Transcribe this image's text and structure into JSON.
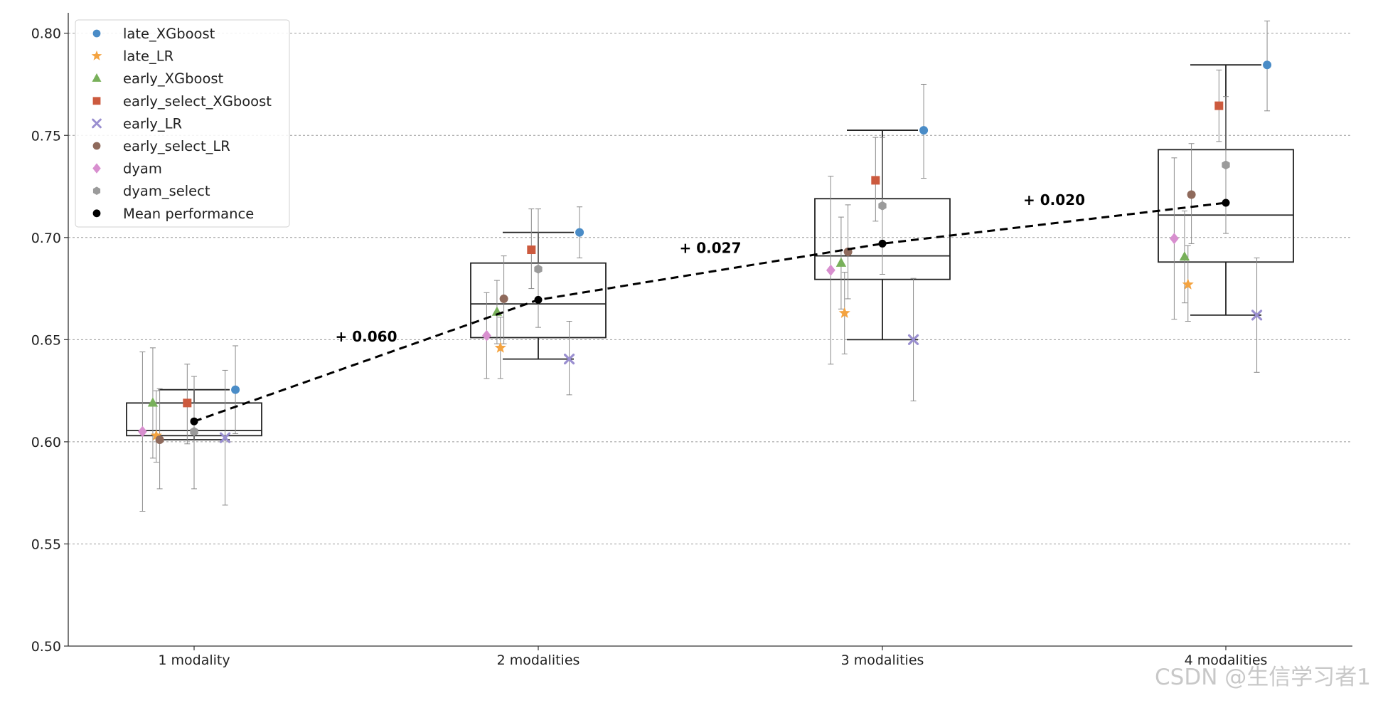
{
  "watermark": "CSDN @生信学习者1",
  "colors": {
    "late_XGboost": "#4a8cc7",
    "late_LR": "#f4a340",
    "early_XGboost": "#78b05a",
    "early_select_XGboost": "#cc5a3e",
    "early_LR": "#9a8fd0",
    "early_select_LR": "#8f6a5c",
    "dyam": "#d88fcf",
    "dyam_select": "#9b9b9b",
    "mean": "#000000"
  },
  "chart_data": {
    "type": "scatter",
    "categories": [
      "1 modality",
      "2 modalities",
      "3 modalities",
      "4 modalities"
    ],
    "ylim": [
      0.5,
      0.81
    ],
    "yticks": [
      "0.50",
      "0.55",
      "0.60",
      "0.65",
      "0.70",
      "0.75",
      "0.80"
    ],
    "grid": "horizontal dashed",
    "legend_position": "top-left",
    "series": [
      {
        "name": "late_XGboost",
        "marker": "circle",
        "color": "#4a8cc7",
        "points": [
          {
            "c": 0,
            "off": 0.12,
            "y": 0.6255,
            "lo": 0.604,
            "hi": 0.647
          },
          {
            "c": 1,
            "off": 0.12,
            "y": 0.7025,
            "lo": 0.69,
            "hi": 0.715
          },
          {
            "c": 2,
            "off": 0.12,
            "y": 0.7525,
            "lo": 0.729,
            "hi": 0.775
          },
          {
            "c": 3,
            "off": 0.12,
            "y": 0.7845,
            "lo": 0.762,
            "hi": 0.806
          }
        ]
      },
      {
        "name": "late_LR",
        "marker": "star",
        "color": "#f4a340",
        "points": [
          {
            "c": 0,
            "off": -0.11,
            "y": 0.603,
            "lo": 0.59,
            "hi": 0.625
          },
          {
            "c": 1,
            "off": -0.11,
            "y": 0.646,
            "lo": 0.631,
            "hi": 0.661
          },
          {
            "c": 2,
            "off": -0.11,
            "y": 0.663,
            "lo": 0.643,
            "hi": 0.683
          },
          {
            "c": 3,
            "off": -0.11,
            "y": 0.677,
            "lo": 0.659,
            "hi": 0.696
          }
        ]
      },
      {
        "name": "early_XGboost",
        "marker": "triangle",
        "color": "#78b05a",
        "points": [
          {
            "c": 0,
            "off": -0.12,
            "y": 0.619,
            "lo": 0.592,
            "hi": 0.646
          },
          {
            "c": 1,
            "off": -0.12,
            "y": 0.6635,
            "lo": 0.648,
            "hi": 0.679
          },
          {
            "c": 2,
            "off": -0.12,
            "y": 0.6875,
            "lo": 0.665,
            "hi": 0.71
          },
          {
            "c": 3,
            "off": -0.12,
            "y": 0.6905,
            "lo": 0.668,
            "hi": 0.713
          }
        ]
      },
      {
        "name": "early_select_XGboost",
        "marker": "square",
        "color": "#cc5a3e",
        "points": [
          {
            "c": 0,
            "off": -0.02,
            "y": 0.619,
            "lo": 0.599,
            "hi": 0.638
          },
          {
            "c": 1,
            "off": -0.02,
            "y": 0.694,
            "lo": 0.675,
            "hi": 0.714
          },
          {
            "c": 2,
            "off": -0.02,
            "y": 0.728,
            "lo": 0.708,
            "hi": 0.749
          },
          {
            "c": 3,
            "off": -0.02,
            "y": 0.7645,
            "lo": 0.747,
            "hi": 0.782
          }
        ]
      },
      {
        "name": "early_LR",
        "marker": "x",
        "color": "#9a8fd0",
        "points": [
          {
            "c": 0,
            "off": 0.09,
            "y": 0.602,
            "lo": 0.569,
            "hi": 0.635
          },
          {
            "c": 1,
            "off": 0.09,
            "y": 0.6405,
            "lo": 0.623,
            "hi": 0.659
          },
          {
            "c": 2,
            "off": 0.09,
            "y": 0.65,
            "lo": 0.62,
            "hi": 0.68
          },
          {
            "c": 3,
            "off": 0.09,
            "y": 0.662,
            "lo": 0.634,
            "hi": 0.69
          }
        ]
      },
      {
        "name": "early_select_LR",
        "marker": "circle",
        "color": "#8f6a5c",
        "points": [
          {
            "c": 0,
            "off": -0.1,
            "y": 0.601,
            "lo": 0.577,
            "hi": 0.626
          },
          {
            "c": 1,
            "off": -0.1,
            "y": 0.67,
            "lo": 0.648,
            "hi": 0.691
          },
          {
            "c": 2,
            "off": -0.1,
            "y": 0.693,
            "lo": 0.67,
            "hi": 0.716
          },
          {
            "c": 3,
            "off": -0.1,
            "y": 0.721,
            "lo": 0.697,
            "hi": 0.746
          }
        ]
      },
      {
        "name": "dyam",
        "marker": "diamond",
        "color": "#d88fcf",
        "points": [
          {
            "c": 0,
            "off": -0.15,
            "y": 0.605,
            "lo": 0.566,
            "hi": 0.644
          },
          {
            "c": 1,
            "off": -0.15,
            "y": 0.652,
            "lo": 0.631,
            "hi": 0.673
          },
          {
            "c": 2,
            "off": -0.15,
            "y": 0.684,
            "lo": 0.638,
            "hi": 0.73
          },
          {
            "c": 3,
            "off": -0.15,
            "y": 0.6995,
            "lo": 0.66,
            "hi": 0.739
          }
        ]
      },
      {
        "name": "dyam_select",
        "marker": "hexagon",
        "color": "#9b9b9b",
        "points": [
          {
            "c": 0,
            "off": 0.0,
            "y": 0.605,
            "lo": 0.577,
            "hi": 0.632
          },
          {
            "c": 1,
            "off": 0.0,
            "y": 0.6845,
            "lo": 0.656,
            "hi": 0.714
          },
          {
            "c": 2,
            "off": 0.0,
            "y": 0.7155,
            "lo": 0.682,
            "hi": 0.749
          },
          {
            "c": 3,
            "off": 0.0,
            "y": 0.7355,
            "lo": 0.702,
            "hi": 0.769
          }
        ]
      },
      {
        "name": "Mean performance",
        "marker": "circle",
        "color": "#000000",
        "points": [
          {
            "c": 0,
            "off": 0.0,
            "y": 0.61
          },
          {
            "c": 1,
            "off": 0.0,
            "y": 0.6695
          },
          {
            "c": 2,
            "off": 0.0,
            "y": 0.697
          },
          {
            "c": 3,
            "off": 0.0,
            "y": 0.717
          }
        ]
      }
    ],
    "boxes": [
      {
        "c": 0,
        "whisker_low": 0.601,
        "q1": 0.603,
        "median": 0.6055,
        "q3": 0.619,
        "whisker_high": 0.6255
      },
      {
        "c": 1,
        "whisker_low": 0.6405,
        "q1": 0.651,
        "median": 0.6675,
        "q3": 0.6875,
        "whisker_high": 0.7025
      },
      {
        "c": 2,
        "whisker_low": 0.65,
        "q1": 0.6795,
        "median": 0.691,
        "q3": 0.719,
        "whisker_high": 0.7525
      },
      {
        "c": 3,
        "whisker_low": 0.662,
        "q1": 0.688,
        "median": 0.711,
        "q3": 0.743,
        "whisker_high": 0.7845
      }
    ],
    "trend": {
      "style": "dashed",
      "y": [
        0.61,
        0.6695,
        0.697,
        0.717
      ]
    },
    "annotations": [
      {
        "text": "+ 0.060",
        "between": [
          0,
          1
        ],
        "y": 0.649
      },
      {
        "text": "+ 0.027",
        "between": [
          1,
          2
        ],
        "y": 0.6925
      },
      {
        "text": "+ 0.020",
        "between": [
          2,
          3
        ],
        "y": 0.716
      }
    ]
  }
}
